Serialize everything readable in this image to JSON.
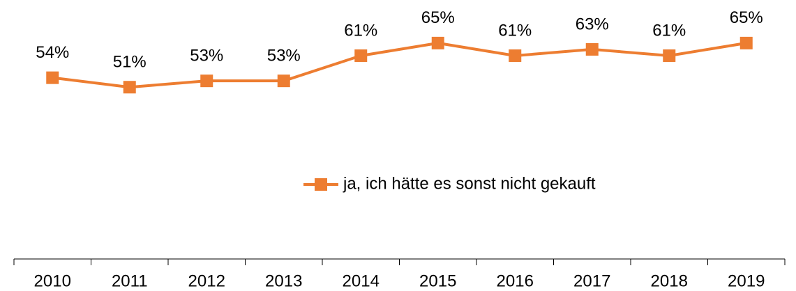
{
  "chart_data": {
    "type": "line",
    "categories": [
      "2010",
      "2011",
      "2012",
      "2013",
      "2014",
      "2015",
      "2016",
      "2017",
      "2018",
      "2019"
    ],
    "series": [
      {
        "name": "ja, ich hätte es sonst nicht gekauft",
        "color": "#ED7D31",
        "values": [
          54,
          51,
          53,
          53,
          61,
          65,
          61,
          63,
          61,
          65
        ],
        "value_labels": [
          "54%",
          "51%",
          "53%",
          "53%",
          "61%",
          "65%",
          "61%",
          "63%",
          "61%",
          "65%"
        ]
      }
    ],
    "ylim": [
      0,
      80
    ]
  }
}
